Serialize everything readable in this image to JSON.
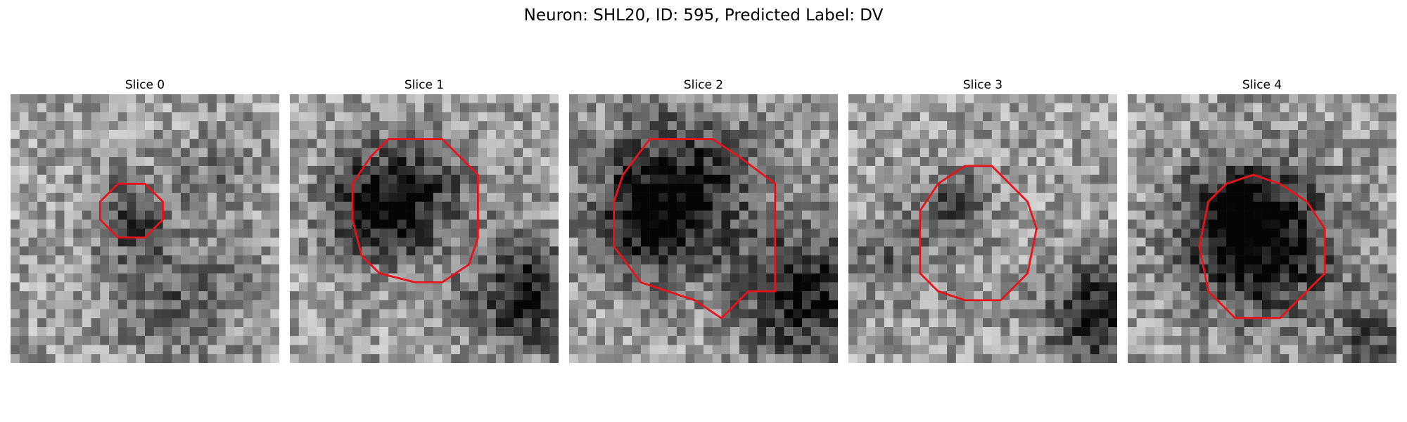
{
  "figure": {
    "title": "Neuron: SHL20, ID: 595, Predicted Label: DV",
    "contour_color": "#e8141c"
  },
  "panels": [
    {
      "title": "Slice 0",
      "contour": [
        [
          12,
          10
        ],
        [
          15,
          10
        ],
        [
          17,
          12
        ],
        [
          17,
          14
        ],
        [
          15,
          16
        ],
        [
          12,
          16
        ],
        [
          10,
          14
        ],
        [
          10,
          12
        ]
      ],
      "dark_blobs": [
        [
          13,
          13,
          3,
          0.35
        ],
        [
          18,
          22,
          5,
          0.25
        ],
        [
          22,
          8,
          3,
          0.15
        ]
      ]
    },
    {
      "title": "Slice 1",
      "contour": [
        [
          11,
          5
        ],
        [
          17,
          5
        ],
        [
          19,
          7
        ],
        [
          21,
          9
        ],
        [
          21,
          16
        ],
        [
          20,
          19
        ],
        [
          17,
          21
        ],
        [
          14,
          21
        ],
        [
          10,
          20
        ],
        [
          8,
          18
        ],
        [
          7,
          14
        ],
        [
          7,
          10
        ],
        [
          9,
          7
        ]
      ],
      "dark_blobs": [
        [
          9,
          12,
          4,
          0.45
        ],
        [
          14,
          11,
          5,
          0.3
        ],
        [
          26,
          22,
          4,
          0.55
        ]
      ]
    },
    {
      "title": "Slice 2",
      "contour": [
        [
          9,
          5
        ],
        [
          16,
          5
        ],
        [
          19,
          7
        ],
        [
          23,
          10
        ],
        [
          23,
          22
        ],
        [
          20,
          22
        ],
        [
          17,
          25
        ],
        [
          14,
          23
        ],
        [
          8,
          21
        ],
        [
          5,
          17
        ],
        [
          5,
          12
        ],
        [
          6,
          9
        ]
      ],
      "dark_blobs": [
        [
          12,
          10,
          6,
          0.5
        ],
        [
          8,
          14,
          4,
          0.35
        ],
        [
          26,
          22,
          5,
          0.55
        ]
      ]
    },
    {
      "title": "Slice 3",
      "contour": [
        [
          13,
          8
        ],
        [
          16,
          8
        ],
        [
          18,
          10
        ],
        [
          20,
          12
        ],
        [
          21,
          15
        ],
        [
          20,
          20
        ],
        [
          17,
          23
        ],
        [
          13,
          23
        ],
        [
          10,
          22
        ],
        [
          8,
          20
        ],
        [
          8,
          13
        ],
        [
          10,
          10
        ]
      ],
      "dark_blobs": [
        [
          11,
          12,
          3,
          0.3
        ],
        [
          27,
          24,
          4,
          0.5
        ],
        [
          4,
          18,
          3,
          0.25
        ]
      ]
    },
    {
      "title": "Slice 4",
      "contour": [
        [
          14,
          9
        ],
        [
          17,
          10
        ],
        [
          20,
          12
        ],
        [
          22,
          15
        ],
        [
          22,
          20
        ],
        [
          20,
          22
        ],
        [
          17,
          25
        ],
        [
          12,
          25
        ],
        [
          9,
          22
        ],
        [
          8,
          17
        ],
        [
          9,
          12
        ],
        [
          11,
          10
        ]
      ],
      "dark_blobs": [
        [
          12,
          14,
          5,
          0.5
        ],
        [
          16,
          17,
          6,
          0.35
        ],
        [
          27,
          27,
          3,
          0.3
        ]
      ]
    }
  ]
}
